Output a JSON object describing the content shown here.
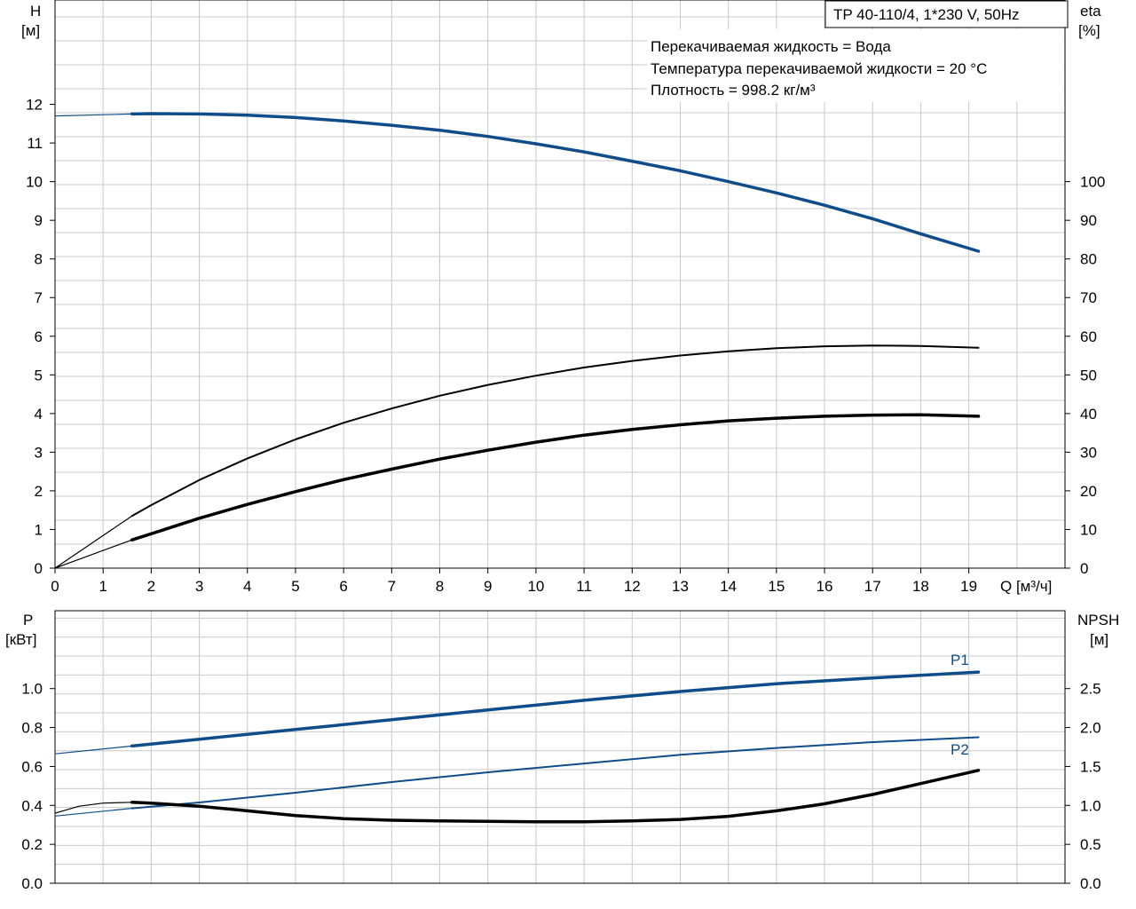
{
  "colors": {
    "grid": "#c8c8c8",
    "axis": "#000000",
    "blue": "#0f4c8a",
    "black": "#000000"
  },
  "title_box": "TP 40-110/4, 1*230 V, 50Hz",
  "info_lines": [
    "Перекачиваемая жидкость = Вода",
    "Температура перекачиваемой жидкости = 20 °C",
    "Плотность = 998.2 кг/м³"
  ],
  "chart_data": [
    {
      "type": "line",
      "x_axis": {
        "label": "Q [м³/ч]",
        "range": [
          0,
          21
        ],
        "ticks": [
          0,
          1,
          2,
          3,
          4,
          5,
          6,
          7,
          8,
          9,
          10,
          11,
          12,
          13,
          14,
          15,
          16,
          17,
          18,
          19
        ]
      },
      "y_left": {
        "label_top": "H",
        "label_unit": "[м]",
        "range": [
          0,
          14.7
        ],
        "ticks": [
          0,
          1,
          2,
          3,
          4,
          5,
          6,
          7,
          8,
          9,
          10,
          11,
          12
        ]
      },
      "y_right": {
        "label_top": "eta",
        "label_unit": "[%]",
        "range": [
          0,
          147
        ],
        "ticks": [
          0,
          10,
          20,
          30,
          40,
          50,
          60,
          70,
          80,
          90,
          100
        ]
      },
      "grid": true,
      "series": [
        {
          "name": "H",
          "axis": "left",
          "style": "blue-thick",
          "points": [
            [
              0,
              11.7
            ],
            [
              1.6,
              11.75
            ],
            [
              2,
              11.76
            ],
            [
              3,
              11.75
            ],
            [
              4,
              11.72
            ],
            [
              5,
              11.66
            ],
            [
              6,
              11.57
            ],
            [
              7,
              11.46
            ],
            [
              8,
              11.33
            ],
            [
              9,
              11.17
            ],
            [
              10,
              10.98
            ],
            [
              11,
              10.77
            ],
            [
              12,
              10.53
            ],
            [
              13,
              10.28
            ],
            [
              14,
              10.0
            ],
            [
              15,
              9.71
            ],
            [
              16,
              9.39
            ],
            [
              17,
              9.04
            ],
            [
              18,
              8.65
            ],
            [
              19.2,
              8.2
            ]
          ],
          "dashed_until": 1.6
        },
        {
          "name": "",
          "axis": "right",
          "style": "black-thin",
          "points": [
            [
              0,
              0
            ],
            [
              1.6,
              13.5
            ],
            [
              2,
              16.3
            ],
            [
              3,
              22.8
            ],
            [
              4,
              28.4
            ],
            [
              5,
              33.3
            ],
            [
              6,
              37.6
            ],
            [
              7,
              41.3
            ],
            [
              8,
              44.6
            ],
            [
              9,
              47.4
            ],
            [
              10,
              49.8
            ],
            [
              11,
              51.9
            ],
            [
              12,
              53.6
            ],
            [
              13,
              55.0
            ],
            [
              14,
              56.1
            ],
            [
              15,
              56.9
            ],
            [
              16,
              57.4
            ],
            [
              17,
              57.6
            ],
            [
              18,
              57.5
            ],
            [
              19.2,
              57.0
            ]
          ],
          "dashed_until": 1.6
        },
        {
          "name": "",
          "axis": "right",
          "style": "black-thick",
          "points": [
            [
              0,
              0
            ],
            [
              1.6,
              7.3
            ],
            [
              2,
              8.9
            ],
            [
              3,
              12.9
            ],
            [
              4,
              16.5
            ],
            [
              5,
              19.8
            ],
            [
              6,
              22.9
            ],
            [
              7,
              25.6
            ],
            [
              8,
              28.2
            ],
            [
              9,
              30.5
            ],
            [
              10,
              32.6
            ],
            [
              11,
              34.4
            ],
            [
              12,
              35.9
            ],
            [
              13,
              37.1
            ],
            [
              14,
              38.1
            ],
            [
              15,
              38.8
            ],
            [
              16,
              39.3
            ],
            [
              17,
              39.6
            ],
            [
              18,
              39.7
            ],
            [
              19.2,
              39.3
            ]
          ],
          "dashed_until": 1.6
        }
      ]
    },
    {
      "type": "line",
      "x_axis": {
        "label": "",
        "range": [
          0,
          21
        ],
        "ticks": []
      },
      "y_left": {
        "label_top": "P",
        "label_unit": "[кВт]",
        "range": [
          0,
          1.4
        ],
        "ticks": [
          0.0,
          0.2,
          0.4,
          0.6,
          0.8,
          1.0
        ],
        "tick_labels": [
          "0.0",
          "0.2",
          "0.4",
          "0.6",
          "0.8",
          "1.0"
        ]
      },
      "y_right": {
        "label_top": "NPSH",
        "label_unit": "[м]",
        "range": [
          0,
          3.5
        ],
        "ticks": [
          0.0,
          0.5,
          1.0,
          1.5,
          2.0,
          2.5
        ],
        "tick_labels": [
          "0.0",
          "0.5",
          "1.0",
          "1.5",
          "2.0",
          "2.5"
        ]
      },
      "grid": true,
      "series": [
        {
          "name": "P1",
          "axis": "left",
          "style": "blue-thick",
          "points": [
            [
              0,
              0.665
            ],
            [
              1.6,
              0.705
            ],
            [
              3,
              0.74
            ],
            [
              5,
              0.79
            ],
            [
              7,
              0.84
            ],
            [
              9,
              0.89
            ],
            [
              11,
              0.94
            ],
            [
              13,
              0.985
            ],
            [
              15,
              1.025
            ],
            [
              17,
              1.055
            ],
            [
              19.2,
              1.085
            ]
          ],
          "dashed_until": 1.6
        },
        {
          "name": "P2",
          "axis": "left",
          "style": "blue-thin",
          "points": [
            [
              0,
              0.345
            ],
            [
              1.6,
              0.385
            ],
            [
              3,
              0.415
            ],
            [
              5,
              0.465
            ],
            [
              7,
              0.52
            ],
            [
              9,
              0.57
            ],
            [
              11,
              0.615
            ],
            [
              13,
              0.66
            ],
            [
              15,
              0.695
            ],
            [
              17,
              0.725
            ],
            [
              19.2,
              0.75
            ]
          ],
          "dashed_until": 1.6
        },
        {
          "name": "NPSH",
          "axis": "right",
          "style": "black-thick",
          "points": [
            [
              0,
              0.9
            ],
            [
              0.5,
              0.99
            ],
            [
              1,
              1.03
            ],
            [
              1.6,
              1.04
            ],
            [
              2,
              1.03
            ],
            [
              3,
              0.99
            ],
            [
              4,
              0.93
            ],
            [
              5,
              0.87
            ],
            [
              6,
              0.83
            ],
            [
              7,
              0.81
            ],
            [
              8,
              0.8
            ],
            [
              9,
              0.795
            ],
            [
              10,
              0.79
            ],
            [
              11,
              0.79
            ],
            [
              12,
              0.8
            ],
            [
              13,
              0.82
            ],
            [
              14,
              0.86
            ],
            [
              15,
              0.93
            ],
            [
              16,
              1.02
            ],
            [
              17,
              1.14
            ],
            [
              18,
              1.28
            ],
            [
              19.2,
              1.45
            ]
          ],
          "dashed_until": 1.6
        }
      ]
    }
  ]
}
